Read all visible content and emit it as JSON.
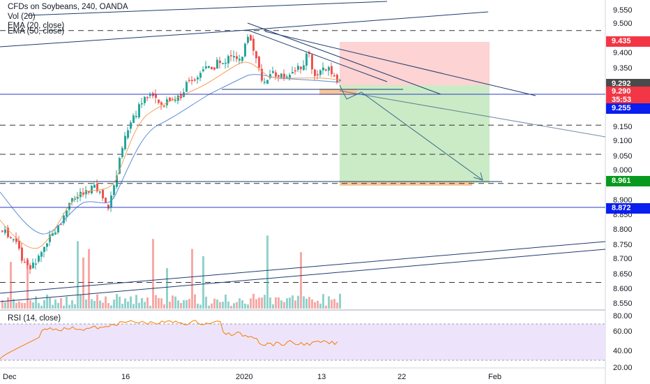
{
  "header": {
    "symbol_line": "CFDs on Soybeans, 240, OANDA",
    "vol_line": "Vol (20)",
    "ema20_line": "EMA (20, close)",
    "ema50_line": "EMA (50, close)"
  },
  "rsi": {
    "label": "RSI (14, close)",
    "ticks": [
      "80.00",
      "60.00",
      "40.00",
      "20.00"
    ]
  },
  "price_axis": {
    "ticks": [
      "9.550",
      "9.500",
      "9.400",
      "9.350",
      "9.150",
      "9.100",
      "9.050",
      "9.000",
      "8.900",
      "8.850",
      "8.800",
      "8.750",
      "8.700",
      "8.650",
      "8.600",
      "8.550"
    ],
    "badges": [
      {
        "text": "9.435",
        "color": "#f23645"
      },
      {
        "text": "9.292",
        "color": "#4a4a4a"
      },
      {
        "text": "9.290",
        "color": "#f23645"
      },
      {
        "text": "35:53",
        "color": "#f23645"
      },
      {
        "text": "9.255",
        "color": "#0a1ef0"
      },
      {
        "text": "8.961",
        "color": "#089a1e"
      },
      {
        "text": "8.872",
        "color": "#0a1ef0"
      }
    ]
  },
  "time_axis": {
    "ticks": [
      "Dec",
      "16",
      "2020",
      "13",
      "22",
      "Feb"
    ]
  },
  "colors": {
    "up": "#26a69a",
    "down": "#ef5350",
    "trendline": "#1e3c6e",
    "hline_blue": "#2e3bc8",
    "ema20": "#f5a05a",
    "ema50": "#5b8dd6",
    "rsi_line": "#f57c00",
    "rsi_band": "#ede4fb",
    "stop_zone": "#fdd3d3",
    "target_zone": "#cbebc7",
    "entry_zone": "#f5c89a"
  },
  "chart_data": {
    "type": "candlestick",
    "symbol": "CFDs on Soybeans",
    "interval": "240",
    "source": "OANDA",
    "y_range": [
      8.52,
      9.58
    ],
    "levels": {
      "stop": 9.435,
      "entry": 9.292,
      "last": 9.29,
      "support": 9.255,
      "target": 8.961,
      "lower_support": 8.872
    },
    "dashed_levels": [
      9.475,
      9.15,
      9.05,
      8.95,
      8.61
    ]
  }
}
